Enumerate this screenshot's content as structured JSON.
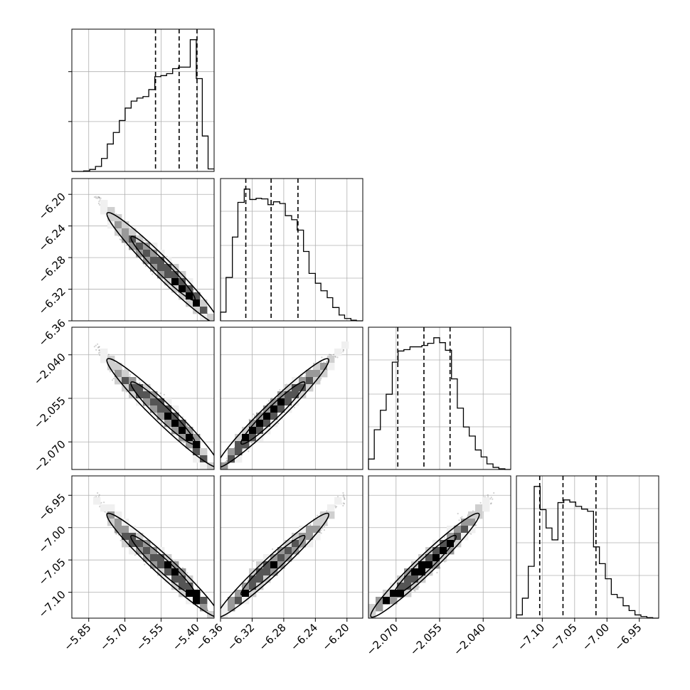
{
  "chart_data": {
    "type": "corner",
    "grid": true,
    "parameters": [
      {
        "range": [
          -5.92,
          -5.33
        ],
        "ticks": [
          -5.85,
          -5.7,
          -5.55,
          -5.4
        ],
        "tick_labels": [
          "−5.85",
          "−5.70",
          "−5.55",
          "−5.40"
        ],
        "quantiles": [
          -5.573,
          -5.475,
          -5.401
        ],
        "hist_bins": [
          -5.92,
          -5.895,
          -5.871,
          -5.846,
          -5.822,
          -5.797,
          -5.773,
          -5.748,
          -5.723,
          -5.699,
          -5.674,
          -5.65,
          -5.625,
          -5.601,
          -5.576,
          -5.551,
          -5.527,
          -5.502,
          -5.478,
          -5.453,
          -5.429,
          -5.404,
          -5.379,
          -5.355,
          -5.33
        ],
        "hist_counts": [
          0,
          0,
          1,
          4,
          10,
          26,
          55,
          78,
          102,
          127,
          141,
          147,
          150,
          164,
          190,
          192,
          196,
          206,
          209,
          209,
          264,
          186,
          71,
          5
        ],
        "hist_ytick_counts": [
          100,
          200
        ]
      },
      {
        "range": [
          -6.36,
          -6.18
        ],
        "ticks": [
          -6.36,
          -6.32,
          -6.28,
          -6.24,
          -6.2
        ],
        "tick_labels": [
          "−6.36",
          "−6.32",
          "−6.28",
          "−6.24",
          "−6.20"
        ],
        "quantiles": [
          -6.328,
          -6.296,
          -6.262
        ],
        "hist_bins": [
          -6.36,
          -6.353,
          -6.345,
          -6.338,
          -6.33,
          -6.323,
          -6.315,
          -6.308,
          -6.3,
          -6.293,
          -6.285,
          -6.278,
          -6.27,
          -6.263,
          -6.255,
          -6.248,
          -6.24,
          -6.233,
          -6.225,
          -6.218,
          -6.21,
          -6.203,
          -6.195,
          -6.188,
          -6.18
        ],
        "hist_counts": [
          15,
          75,
          145,
          205,
          228,
          210,
          212,
          211,
          201,
          206,
          203,
          182,
          175,
          157,
          120,
          82,
          65,
          52,
          40,
          23,
          10,
          4,
          1,
          0
        ],
        "hist_ytick_counts": []
      },
      {
        "range": [
          -2.0795,
          -2.0305
        ],
        "ticks": [
          -2.07,
          -2.055,
          -2.04
        ],
        "tick_labels": [
          "−2.070",
          "−2.055",
          "−2.040"
        ],
        "quantiles": [
          -2.0694,
          -2.0604,
          -2.0514
        ],
        "hist_bins": [
          -2.0795,
          -2.0775,
          -2.0754,
          -2.0734,
          -2.0713,
          -2.0693,
          -2.0673,
          -2.0652,
          -2.0632,
          -2.0611,
          -2.0591,
          -2.057,
          -2.055,
          -2.053,
          -2.0509,
          -2.0489,
          -2.0468,
          -2.0448,
          -2.0427,
          -2.0407,
          -2.0387,
          -2.0366,
          -2.0346,
          -2.0325,
          -2.0305
        ],
        "hist_counts": [
          15,
          57,
          85,
          108,
          154,
          170,
          172,
          176,
          176,
          178,
          181,
          189,
          182,
          171,
          130,
          88,
          61,
          48,
          28,
          18,
          8,
          3,
          1,
          0
        ],
        "hist_ytick_counts": []
      },
      {
        "range": [
          -7.14,
          -6.92
        ],
        "ticks": [
          -7.1,
          -7.05,
          -7.0,
          -6.95
        ],
        "tick_labels": [
          "−7.10",
          "−7.05",
          "−7.00",
          "−6.95"
        ],
        "quantiles": [
          -7.104,
          -7.068,
          -7.017
        ],
        "hist_bins": [
          -7.14,
          -7.1308,
          -7.1217,
          -7.1125,
          -7.1033,
          -7.0942,
          -7.085,
          -7.0758,
          -7.0667,
          -7.0575,
          -7.0483,
          -7.0392,
          -7.03,
          -7.0208,
          -7.0117,
          -7.0025,
          -6.9933,
          -6.9842,
          -6.975,
          -6.9658,
          -6.9567,
          -6.9475,
          -6.9383,
          -6.9292,
          -6.92
        ],
        "hist_counts": [
          6,
          37,
          96,
          244,
          201,
          167,
          145,
          214,
          219,
          215,
          207,
          202,
          198,
          132,
          101,
          73,
          44,
          38,
          23,
          14,
          6,
          3,
          1,
          0
        ],
        "hist_ytick_counts": []
      }
    ],
    "pairs": [
      {
        "x": 0,
        "y": 1,
        "correlation": -0.98,
        "y_tick_labels": [
          "−6.20",
          "−6.24",
          "−6.28",
          "−6.32",
          "−6.36"
        ]
      },
      {
        "x": 0,
        "y": 2,
        "correlation": -0.97,
        "y_tick_labels": [
          "−2.040",
          "−2.055",
          "−2.070"
        ]
      },
      {
        "x": 0,
        "y": 3,
        "correlation": -0.98,
        "y_tick_labels": [
          "−6.95",
          "−7.00",
          "−7.05",
          "−7.10"
        ]
      },
      {
        "x": 1,
        "y": 2,
        "correlation": 0.995
      },
      {
        "x": 1,
        "y": 3,
        "correlation": 0.99
      },
      {
        "x": 2,
        "y": 3,
        "correlation": 0.99
      }
    ]
  }
}
